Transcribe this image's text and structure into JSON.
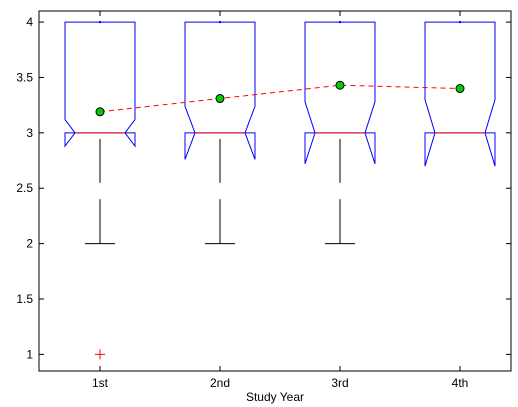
{
  "chart_data": {
    "type": "boxplot",
    "title": "",
    "xlabel": "Study Year",
    "ylabel": "",
    "categories": [
      "1st",
      "2nd",
      "3rd",
      "4th"
    ],
    "ylim": [
      0.85,
      4.1
    ],
    "yticks": [
      1,
      1.5,
      2,
      2.5,
      3,
      3.5,
      4
    ],
    "ytick_labels": [
      "1",
      "1.5",
      "2",
      "2.5",
      "3",
      "3.5",
      "4"
    ],
    "grid": false,
    "notched": true,
    "boxes": [
      {
        "category": "1st",
        "q1": 3.0,
        "median": 3.0,
        "q3": 4.0,
        "notch_low": 2.88,
        "notch_high": 3.12,
        "whisker_low": 2.0,
        "whisker_high": 4.0,
        "outliers": [
          1.0
        ]
      },
      {
        "category": "2nd",
        "q1": 3.0,
        "median": 3.0,
        "q3": 4.0,
        "notch_low": 2.76,
        "notch_high": 3.24,
        "whisker_low": 2.0,
        "whisker_high": 4.0,
        "outliers": []
      },
      {
        "category": "3rd",
        "q1": 3.0,
        "median": 3.0,
        "q3": 4.0,
        "notch_low": 2.72,
        "notch_high": 3.28,
        "whisker_low": 2.0,
        "whisker_high": 4.0,
        "outliers": []
      },
      {
        "category": "4th",
        "q1": 3.0,
        "median": 3.0,
        "q3": 4.0,
        "notch_low": 2.7,
        "notch_high": 3.3,
        "whisker_low": 3.0,
        "whisker_high": 4.0,
        "outliers": []
      }
    ],
    "means": [
      3.19,
      3.31,
      3.43,
      3.4
    ],
    "colors": {
      "box": "#0000ff",
      "median": "#ff0000",
      "whisker": "#000000",
      "outlier": "#ff0000",
      "mean_marker": "#00cc00",
      "mean_line": "#ff0000"
    }
  }
}
